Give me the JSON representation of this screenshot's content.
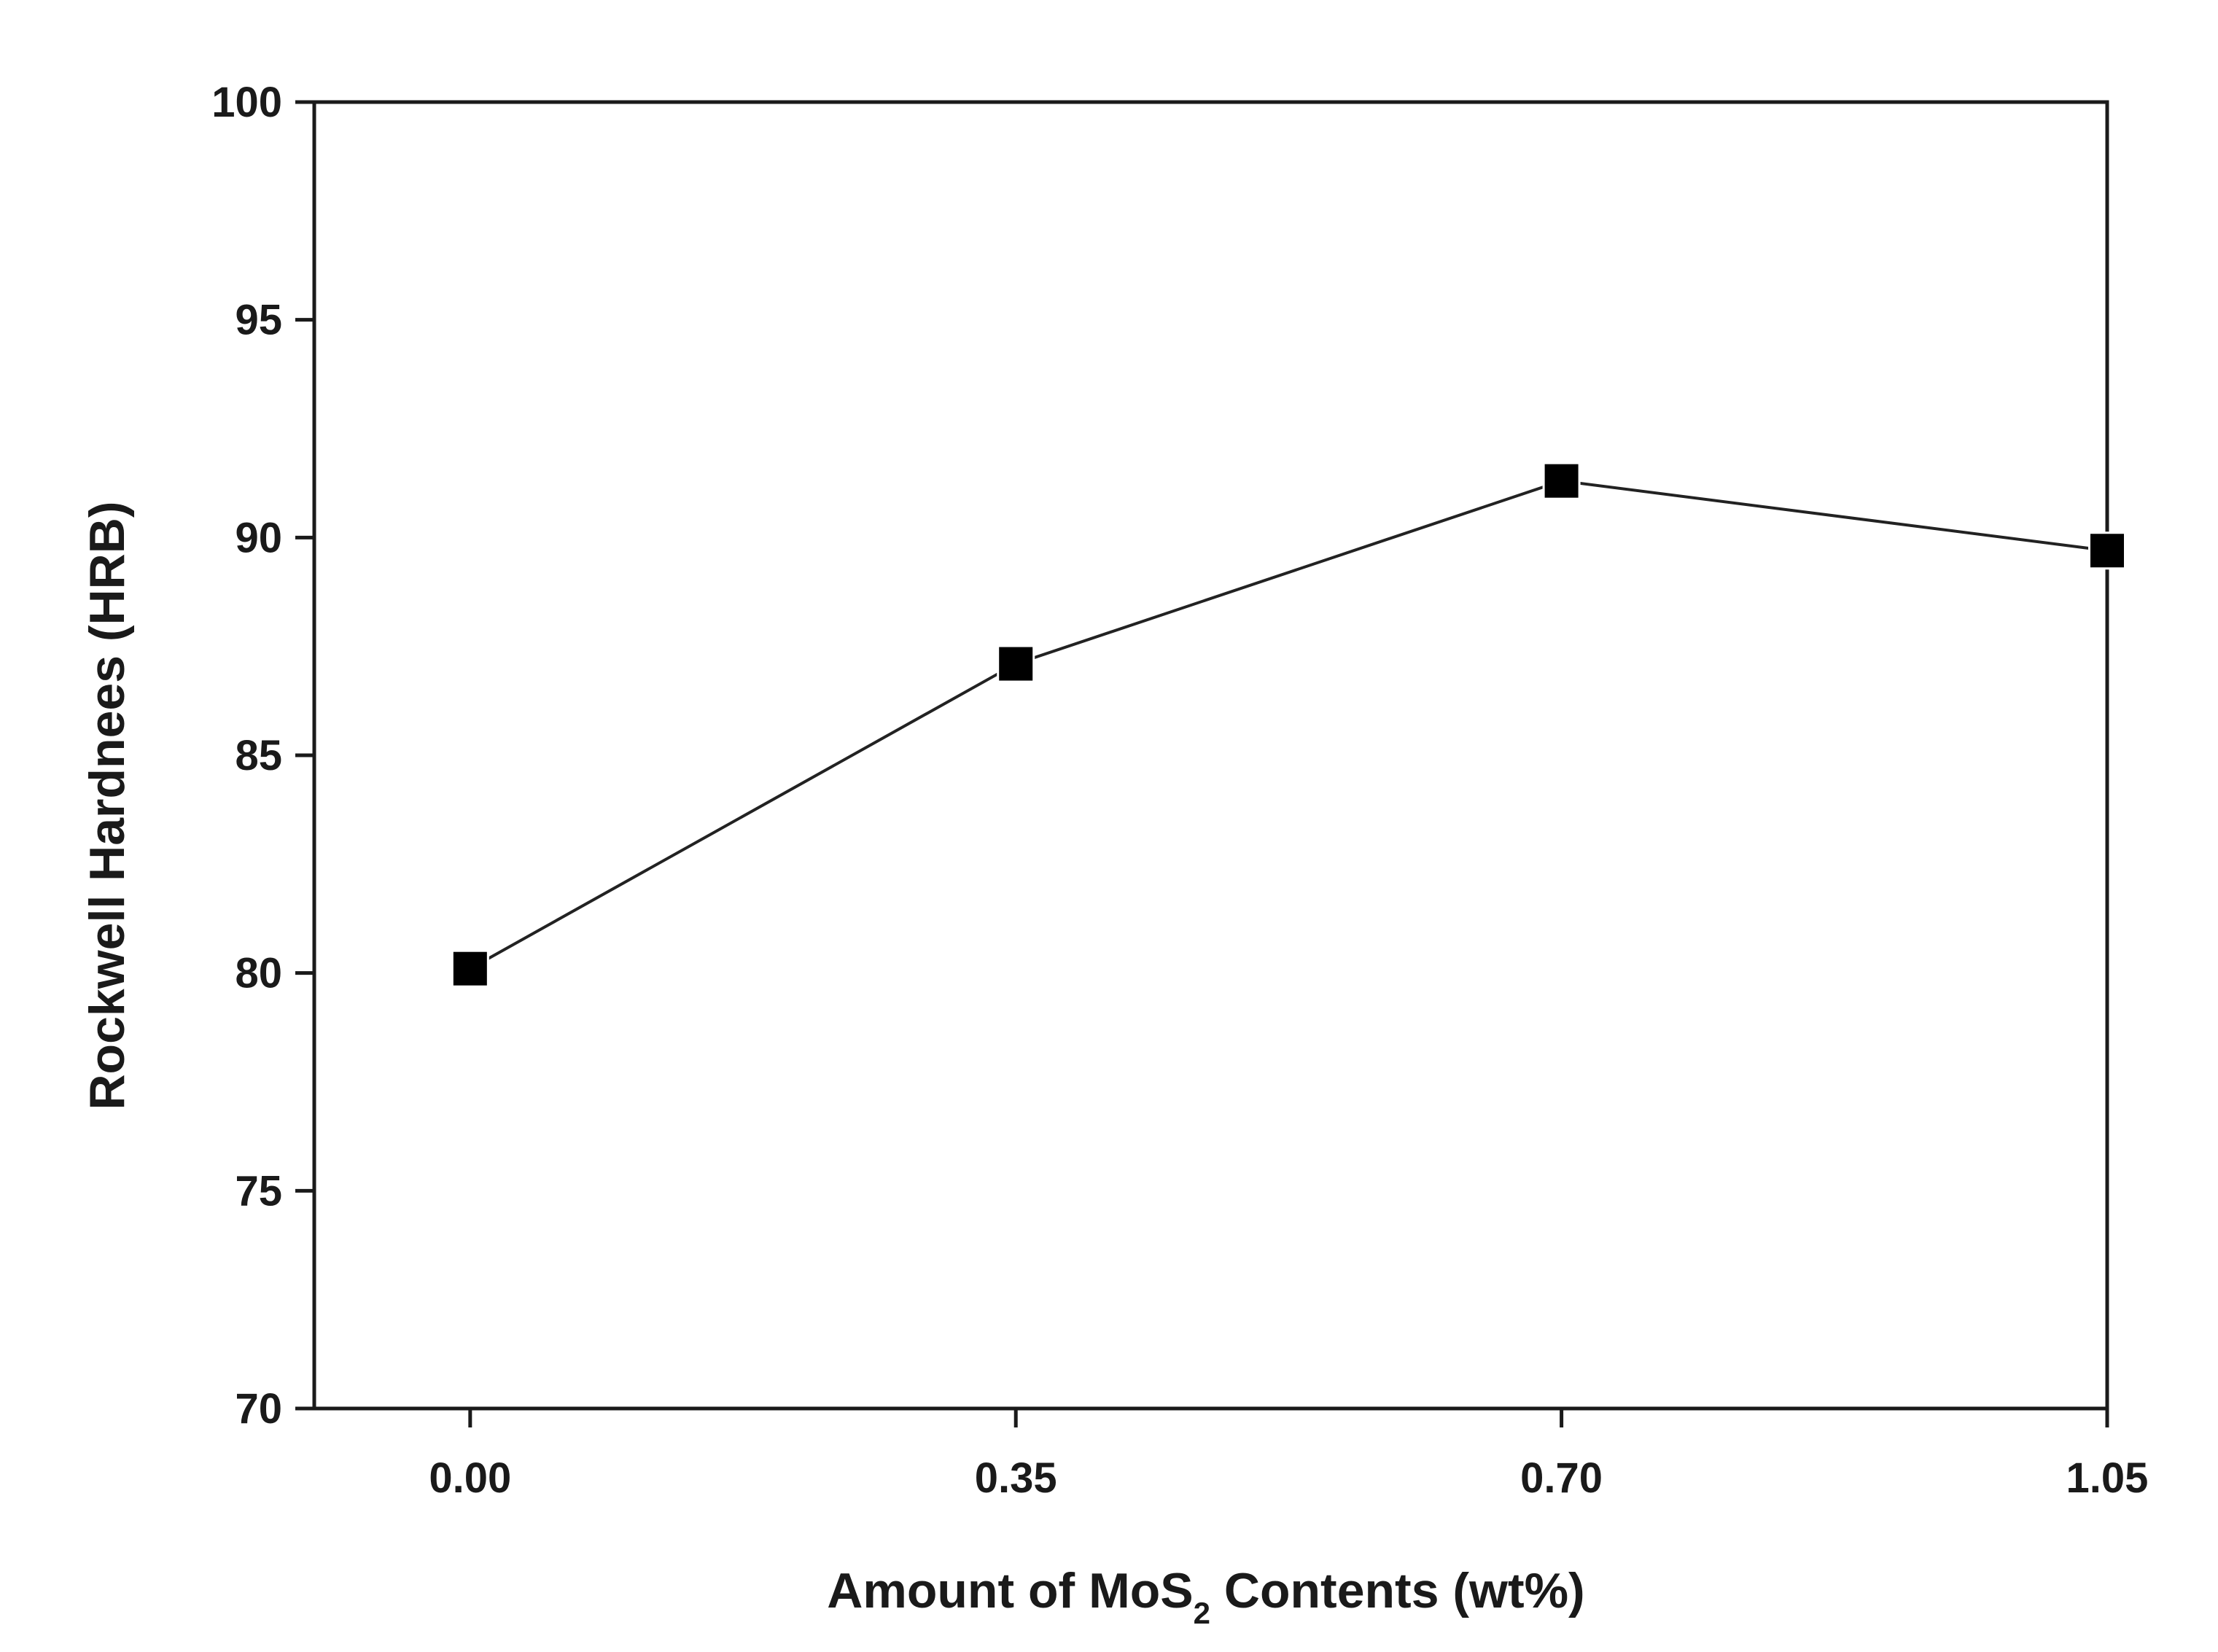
{
  "chart_data": {
    "type": "line",
    "title": "",
    "xlabel": {
      "main": "Amount of MoS",
      "subscript": "2",
      "rest": " Contents (wt%)"
    },
    "ylabel": "Rockwell Hardnees (HRB)",
    "x": [
      0.0,
      0.35,
      0.7,
      1.05
    ],
    "series": [
      {
        "values": [
          80.1,
          87.1,
          91.3,
          89.7
        ]
      }
    ],
    "xlim": [
      -0.1,
      1.05
    ],
    "ylim": [
      70,
      100
    ],
    "x_ticks": [
      0.0,
      0.35,
      0.7,
      1.05
    ],
    "x_tick_labels": [
      "0.00",
      "0.35",
      "0.70",
      "1.05"
    ],
    "y_ticks": [
      70,
      75,
      80,
      85,
      90,
      95,
      100
    ],
    "y_tick_labels": [
      "70",
      "75",
      "80",
      "85",
      "90",
      "95",
      "100"
    ],
    "marker": "square",
    "line_color": "#222222",
    "marker_color": "#000000",
    "grid": false,
    "legend": "none"
  }
}
